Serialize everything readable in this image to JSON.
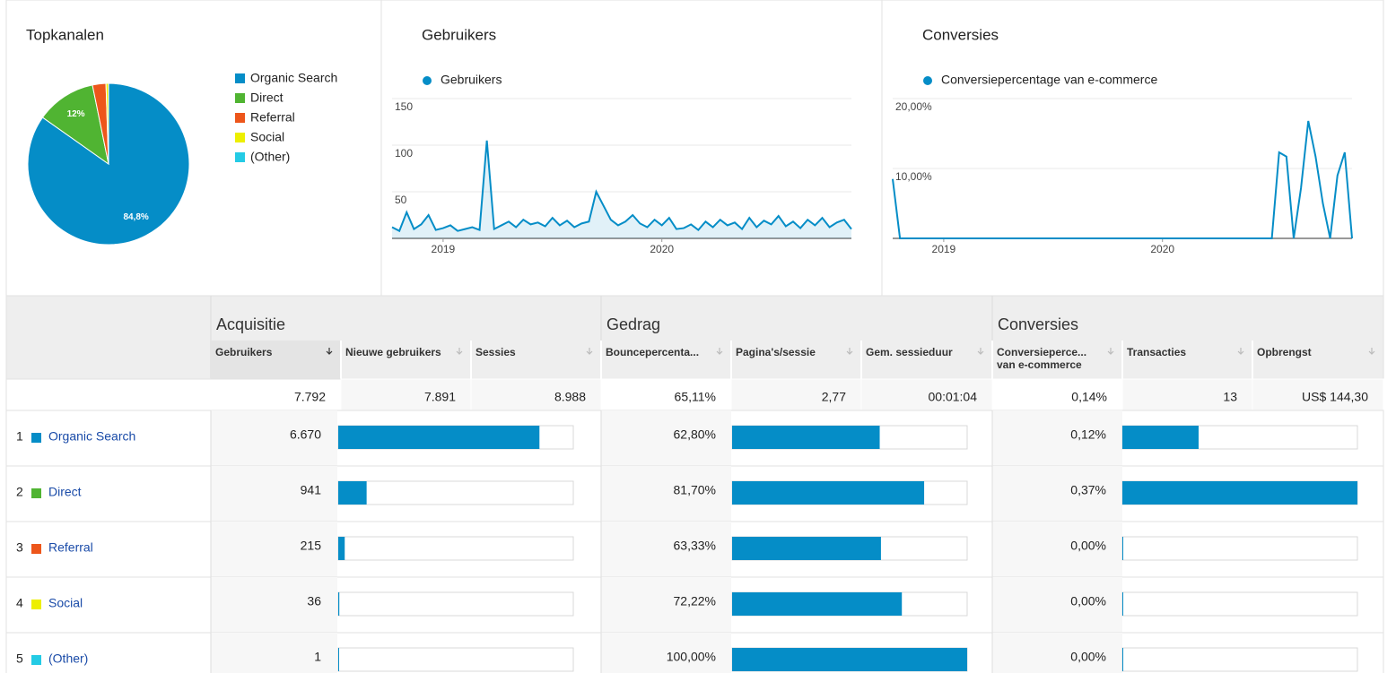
{
  "chart_data": [
    {
      "type": "pie",
      "title": "Topkanalen",
      "categories": [
        "Organic Search",
        "Direct",
        "Referral",
        "Social",
        "(Other)"
      ],
      "values": [
        84.8,
        12,
        2.7,
        0.5,
        0.01
      ],
      "value_labels": [
        "84,8%",
        "12%",
        null,
        null,
        null
      ],
      "colors": [
        "#058dc7",
        "#50b432",
        "#ed561b",
        "#edef00",
        "#24cbe5"
      ]
    },
    {
      "type": "line",
      "title": "Gebruikers",
      "area": true,
      "categories": [
        null,
        null,
        null,
        null,
        null,
        null,
        null,
        "2019",
        null,
        null,
        null,
        null,
        null,
        null,
        null,
        null,
        null,
        null,
        null,
        null,
        null,
        null,
        null,
        null,
        null,
        null,
        null,
        null,
        null,
        null,
        null,
        null,
        null,
        null,
        null,
        null,
        null,
        "2020",
        null,
        null,
        null,
        null,
        null,
        null,
        null,
        null,
        null,
        null,
        null,
        null,
        null,
        null,
        null,
        null,
        null,
        null,
        null,
        null,
        null,
        null,
        null,
        null,
        null,
        null
      ],
      "series": [
        {
          "name": "Gebruikers",
          "color": "#058dc7",
          "values": [
            12,
            8,
            28,
            10,
            15,
            25,
            9,
            11,
            14,
            8,
            10,
            12,
            9,
            105,
            10,
            14,
            18,
            12,
            20,
            15,
            17,
            13,
            22,
            14,
            19,
            12,
            16,
            18,
            50,
            35,
            20,
            14,
            18,
            25,
            16,
            12,
            20,
            14,
            22,
            10,
            11,
            15,
            9,
            18,
            12,
            20,
            14,
            17,
            10,
            22,
            12,
            19,
            15,
            24,
            13,
            18,
            11,
            20,
            14,
            22,
            12,
            17,
            20,
            10
          ]
        }
      ],
      "ylim": [
        0,
        150
      ],
      "yticks": [
        50,
        100,
        150
      ],
      "grid": true
    },
    {
      "type": "line",
      "title": "Conversies",
      "area": false,
      "categories": [
        null,
        null,
        null,
        null,
        null,
        null,
        null,
        "2019",
        null,
        null,
        null,
        null,
        null,
        null,
        null,
        null,
        null,
        null,
        null,
        null,
        null,
        null,
        null,
        null,
        null,
        null,
        null,
        null,
        null,
        null,
        null,
        null,
        null,
        null,
        null,
        null,
        null,
        "2020",
        null,
        null,
        null,
        null,
        null,
        null,
        null,
        null,
        null,
        null,
        null,
        null,
        null,
        null,
        null,
        null,
        null,
        null,
        null,
        null,
        null,
        null,
        null,
        null,
        null,
        null
      ],
      "series": [
        {
          "name": "Conversiepercentage van e-commerce",
          "color": "#058dc7",
          "values": [
            8.5,
            0,
            0,
            0,
            0,
            0,
            0,
            0,
            0,
            0,
            0,
            0,
            0,
            0,
            0,
            0,
            0,
            0,
            0,
            0,
            0,
            0,
            0,
            0,
            0,
            0,
            0,
            0,
            0,
            0,
            0,
            0,
            0,
            0,
            0,
            0,
            0,
            0,
            0,
            0,
            0,
            0,
            0,
            0,
            0,
            0,
            0,
            0,
            0,
            0,
            0,
            0,
            0,
            12.3,
            11.7,
            0,
            7.2,
            16.8,
            11.7,
            5,
            0,
            9,
            12.3,
            0
          ]
        }
      ],
      "ylim": [
        0,
        20
      ],
      "yticks": [
        {
          "value": 10,
          "label": "10,00%"
        },
        {
          "value": 20,
          "label": "20,00%"
        }
      ],
      "grid": true
    }
  ],
  "table": {
    "groups": [
      "Acquisitie",
      "Gedrag",
      "Conversies"
    ],
    "columns": [
      "Gebruikers",
      "Nieuwe gebruikers",
      "Sessies",
      "Bouncepercenta...",
      "Pagina's/sessie",
      "Gem. sessieduur",
      "Conversieperce... van e-commerce",
      "Transacties",
      "Opbrengst"
    ],
    "totals": [
      {
        "value": 7792,
        "label": "7.792"
      },
      "7.891",
      "8.988",
      "65,11%",
      "2,77",
      "00:01:04",
      "0,14%",
      "13",
      "US$ 144,30"
    ],
    "rows": [
      {
        "rank": "1",
        "channel": "Organic Search",
        "color": "#058dc7",
        "users": {
          "value": 6670,
          "label": "6.670"
        },
        "bounce": {
          "value": 62.8,
          "label": "62,80%"
        },
        "conversion": {
          "value": 0.12,
          "label": "0,12%"
        }
      },
      {
        "rank": "2",
        "channel": "Direct",
        "color": "#50b432",
        "users": {
          "value": 941,
          "label": "941"
        },
        "bounce": {
          "value": 81.7,
          "label": "81,70%"
        },
        "conversion": {
          "value": 0.37,
          "label": "0,37%"
        }
      },
      {
        "rank": "3",
        "channel": "Referral",
        "color": "#ed561b",
        "users": {
          "value": 215,
          "label": "215"
        },
        "bounce": {
          "value": 63.33,
          "label": "63,33%"
        },
        "conversion": {
          "value": 0,
          "label": "0,00%"
        }
      },
      {
        "rank": "4",
        "channel": "Social",
        "color": "#edef00",
        "users": {
          "value": 36,
          "label": "36"
        },
        "bounce": {
          "value": 72.22,
          "label": "72,22%"
        },
        "conversion": {
          "value": 0,
          "label": "0,00%"
        }
      },
      {
        "rank": "5",
        "channel": "(Other)",
        "color": "#24cbe5",
        "users": {
          "value": 1,
          "label": "1"
        },
        "bounce": {
          "value": 100,
          "label": "100,00%"
        },
        "conversion": {
          "value": 0,
          "label": "0,00%"
        }
      }
    ]
  }
}
